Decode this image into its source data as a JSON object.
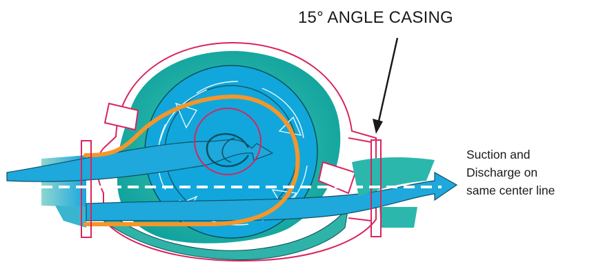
{
  "labels": {
    "casing_callout": "15° ANGLE CASING",
    "centerline_note": [
      "Suction and",
      "Discharge on",
      "same center line"
    ]
  },
  "colors": {
    "casing_outline": "#d9245c",
    "volute_fill": "#2ab7b0",
    "impeller_fill": "#10a9dc",
    "flow_arrow": "#1ea8dc",
    "flow_path": "#f4962a",
    "centerline": "#ffffff"
  }
}
